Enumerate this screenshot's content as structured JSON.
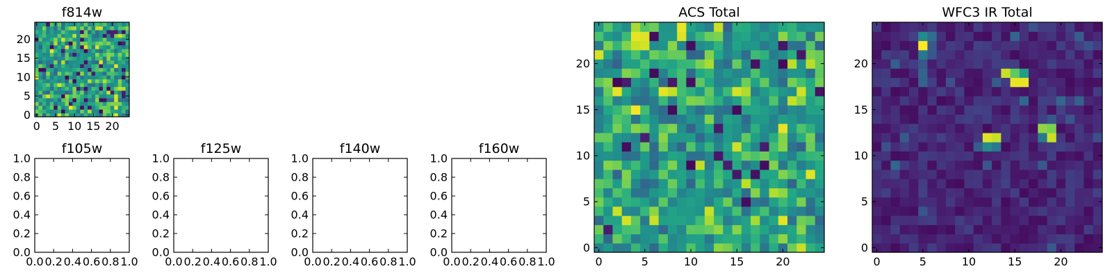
{
  "chart_data": [
    {
      "type": "heatmap",
      "title": "f814w",
      "grid_size": 25,
      "xlim": [
        -0.5,
        24.5
      ],
      "ylim": [
        -0.5,
        24.5
      ],
      "xticks": [
        0,
        5,
        10,
        15,
        20
      ],
      "yticks": [
        0,
        5,
        10,
        15,
        20
      ],
      "colormap": "viridis",
      "seed": 814,
      "bright_spots": [],
      "dark_fraction": 0.08
    },
    {
      "type": "heatmap",
      "title": "ACS Total",
      "grid_size": 25,
      "xlim": [
        -0.5,
        24.5
      ],
      "ylim": [
        -0.5,
        24.5
      ],
      "xticks": [
        0,
        5,
        10,
        15,
        20
      ],
      "yticks": [
        0,
        5,
        10,
        15,
        20
      ],
      "colormap": "viridis",
      "seed": 2024,
      "bright_spots": [
        [
          4,
          23,
          0.98
        ],
        [
          5,
          23,
          0.97
        ],
        [
          4,
          22,
          0.95
        ],
        [
          5,
          22,
          0.96
        ],
        [
          12,
          4,
          0.95
        ],
        [
          12,
          3,
          0.92
        ],
        [
          19,
          6,
          0.93
        ],
        [
          20,
          6,
          0.9
        ]
      ],
      "dark_fraction": 0.06
    },
    {
      "type": "heatmap",
      "title": "WFC3 IR Total",
      "grid_size": 25,
      "xlim": [
        -0.5,
        24.5
      ],
      "ylim": [
        -0.5,
        24.5
      ],
      "xticks": [
        0,
        5,
        10,
        15,
        20
      ],
      "yticks": [
        0,
        5,
        10,
        15,
        20
      ],
      "colormap": "viridis",
      "seed": 160,
      "background": "faint",
      "bright_spots": [
        [
          5,
          22,
          1.0
        ],
        [
          5,
          23,
          0.6
        ],
        [
          5,
          21,
          0.5
        ],
        [
          6,
          23,
          0.45
        ],
        [
          14,
          19,
          0.95
        ],
        [
          15,
          19,
          0.85
        ],
        [
          16,
          19,
          0.7
        ],
        [
          15,
          18,
          0.98
        ],
        [
          16,
          18,
          0.98
        ],
        [
          12,
          12,
          0.97
        ],
        [
          13,
          12,
          0.95
        ],
        [
          12,
          11,
          0.6
        ],
        [
          13,
          11,
          0.5
        ],
        [
          18,
          13,
          0.9
        ],
        [
          19,
          13,
          0.88
        ],
        [
          18,
          12,
          0.5
        ],
        [
          19,
          12,
          0.95
        ]
      ]
    },
    {
      "type": "empty",
      "title": "f105w",
      "xlim": [
        0,
        1
      ],
      "ylim": [
        0,
        1
      ],
      "xticks": [
        "0.0",
        "0.2",
        "0.4",
        "0.6",
        "0.8",
        "1.0"
      ],
      "yticks": [
        "0.0",
        "0.2",
        "0.4",
        "0.6",
        "0.8",
        "1.0"
      ]
    },
    {
      "type": "empty",
      "title": "f125w",
      "xlim": [
        0,
        1
      ],
      "ylim": [
        0,
        1
      ],
      "xticks": [
        "0.0",
        "0.2",
        "0.4",
        "0.6",
        "0.8",
        "1.0"
      ],
      "yticks": [
        "0.0",
        "0.2",
        "0.4",
        "0.6",
        "0.8",
        "1.0"
      ]
    },
    {
      "type": "empty",
      "title": "f140w",
      "xlim": [
        0,
        1
      ],
      "ylim": [
        0,
        1
      ],
      "xticks": [
        "0.0",
        "0.2",
        "0.4",
        "0.6",
        "0.8",
        "1.0"
      ],
      "yticks": [
        "0.0",
        "0.2",
        "0.4",
        "0.6",
        "0.8",
        "1.0"
      ]
    },
    {
      "type": "empty",
      "title": "f160w",
      "xlim": [
        0,
        1
      ],
      "ylim": [
        0,
        1
      ],
      "xticks": [
        "0.0",
        "0.2",
        "0.4",
        "0.6",
        "0.8",
        "1.0"
      ],
      "yticks": [
        "0.0",
        "0.2",
        "0.4",
        "0.6",
        "0.8",
        "1.0"
      ]
    }
  ]
}
